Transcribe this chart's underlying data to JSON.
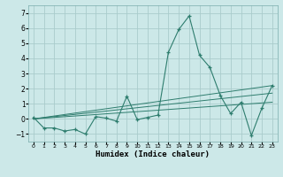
{
  "xlabel": "Humidex (Indice chaleur)",
  "bg_color": "#cce8e8",
  "grid_color": "#aacccc",
  "line_color": "#2e7d6e",
  "xlim": [
    -0.5,
    23.5
  ],
  "ylim": [
    -1.5,
    7.5
  ],
  "yticks": [
    -1,
    0,
    1,
    2,
    3,
    4,
    5,
    6,
    7
  ],
  "xticks": [
    0,
    1,
    2,
    3,
    4,
    5,
    6,
    7,
    8,
    9,
    10,
    11,
    12,
    13,
    14,
    15,
    16,
    17,
    18,
    19,
    20,
    21,
    22,
    23
  ],
  "main_x": [
    0,
    1,
    2,
    3,
    4,
    5,
    6,
    7,
    8,
    9,
    10,
    11,
    12,
    13,
    14,
    15,
    16,
    17,
    18,
    19,
    20,
    21,
    22,
    23
  ],
  "main_y": [
    0.1,
    -0.6,
    -0.6,
    -0.8,
    -0.7,
    -1.0,
    0.15,
    0.05,
    -0.15,
    1.5,
    -0.05,
    0.1,
    0.25,
    4.4,
    5.9,
    6.8,
    4.2,
    3.4,
    1.55,
    0.35,
    1.1,
    -1.1,
    0.7,
    2.2
  ],
  "trend_lines": [
    {
      "x": [
        0,
        23
      ],
      "y": [
        0.0,
        2.2
      ]
    },
    {
      "x": [
        0,
        23
      ],
      "y": [
        0.0,
        1.7
      ]
    },
    {
      "x": [
        0,
        23
      ],
      "y": [
        0.0,
        1.1
      ]
    }
  ]
}
